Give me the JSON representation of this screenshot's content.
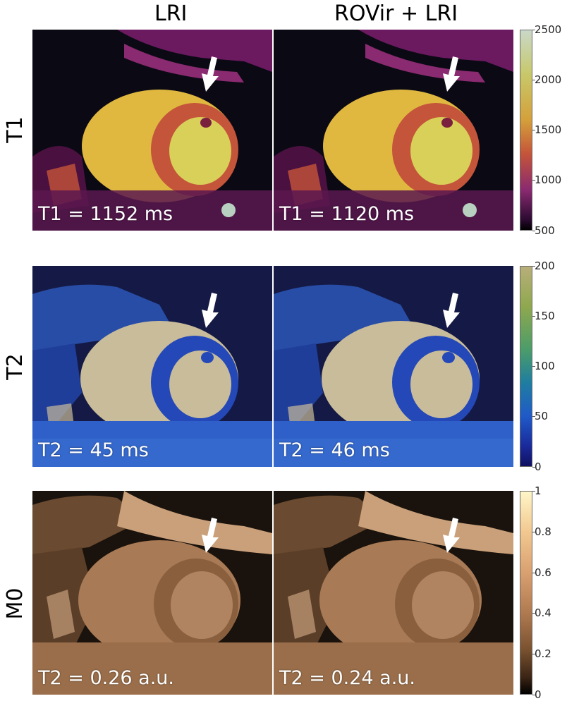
{
  "columns": [
    "LRI",
    "ROVir + LRI"
  ],
  "rows": [
    {
      "label": "T1",
      "colormap": "lipari",
      "measurements": [
        "T1 = 1152 ms",
        "T1 = 1120 ms"
      ],
      "colorbar": {
        "ticks": [
          "2500",
          "2000",
          "1500",
          "1000",
          "500"
        ],
        "min": 500,
        "max": 2500
      }
    },
    {
      "label": "T2",
      "colormap": "navia",
      "measurements": [
        "T2 = 45 ms",
        "T2 = 46 ms"
      ],
      "colorbar": {
        "ticks": [
          "200",
          "150",
          "100",
          "50",
          "0"
        ],
        "min": 0,
        "max": 200
      }
    },
    {
      "label": "M0",
      "colormap": "copper",
      "measurements": [
        "T2 = 0.26 a.u.",
        "T2 = 0.24 a.u."
      ],
      "colorbar": {
        "ticks": [
          "1",
          "0.8",
          "0.6",
          "0.4",
          "0.2",
          "0"
        ],
        "min": 0,
        "max": 1
      }
    }
  ],
  "icons": {
    "arrow": "down-left-arrow-icon"
  },
  "colors": {
    "t1_bg": "#0b0a14",
    "t1_blood": "#e8c845",
    "t1_myo": "#c4543a",
    "t1_fat": "#7a1f6e",
    "t2_bg": "#141a45",
    "t2_blood": "#c9bc9a",
    "t2_myo": "#2448b8",
    "t2_tissue": "#2f5fc8",
    "m0_bg": "#1a120c",
    "m0_blood": "#a87a55",
    "m0_myo": "#8a5f3e",
    "m0_fat": "#d9b08a"
  }
}
